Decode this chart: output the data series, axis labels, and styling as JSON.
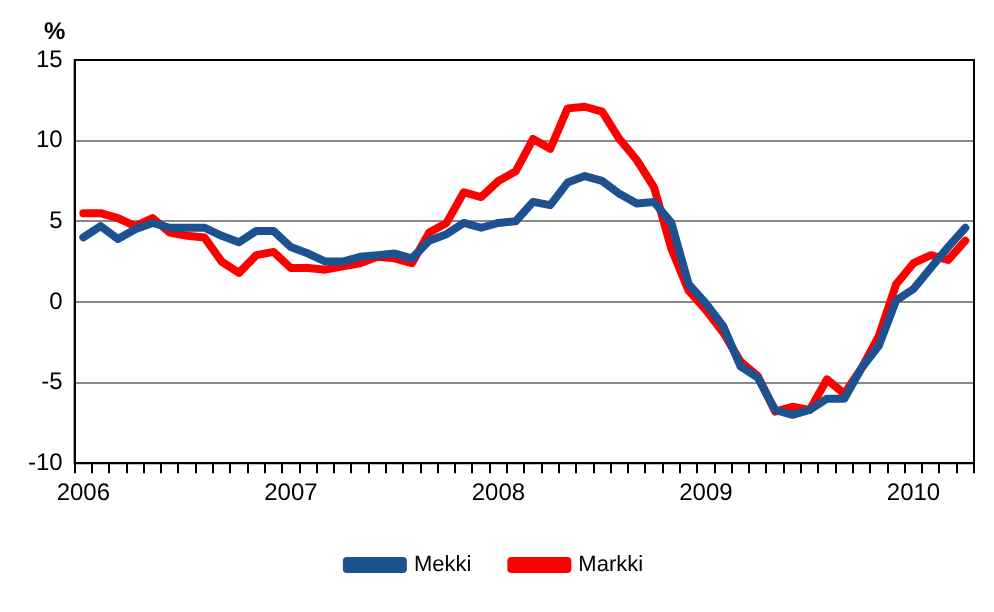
{
  "chart_data": {
    "type": "line",
    "ylabel": "%",
    "categories": [
      "2006",
      null,
      null,
      null,
      null,
      null,
      null,
      null,
      null,
      null,
      null,
      null,
      "2007",
      null,
      null,
      null,
      null,
      null,
      null,
      null,
      null,
      null,
      null,
      null,
      "2008",
      null,
      null,
      null,
      null,
      null,
      null,
      null,
      null,
      null,
      null,
      null,
      "2009",
      null,
      null,
      null,
      null,
      null,
      null,
      null,
      null,
      null,
      null,
      null,
      "2010",
      null,
      null,
      null
    ],
    "series": [
      {
        "name": "Mekki",
        "color": "#1d5290",
        "values": [
          4.0,
          4.7,
          3.9,
          4.5,
          4.9,
          4.6,
          4.6,
          4.6,
          4.1,
          3.7,
          4.4,
          4.4,
          3.4,
          3.0,
          2.5,
          2.5,
          2.8,
          2.9,
          3.0,
          2.7,
          3.8,
          4.2,
          4.9,
          4.6,
          4.9,
          5.0,
          6.2,
          6.0,
          7.4,
          7.8,
          7.5,
          6.7,
          6.1,
          6.2,
          4.9,
          1.1,
          -0.1,
          -1.5,
          -4.0,
          -4.7,
          -6.7,
          -7.0,
          -6.7,
          -6.0,
          -6.0,
          -4.1,
          -2.7,
          0.1,
          0.8,
          2.1,
          3.4,
          4.6
        ]
      },
      {
        "name": "Markki",
        "color": "#ff0000",
        "values": [
          5.5,
          5.5,
          5.2,
          4.7,
          5.2,
          4.3,
          4.1,
          4.0,
          2.5,
          1.8,
          2.9,
          3.1,
          2.1,
          2.1,
          2.0,
          2.2,
          2.4,
          2.8,
          2.7,
          2.4,
          4.3,
          4.9,
          6.8,
          6.5,
          7.5,
          8.1,
          10.1,
          9.5,
          12.0,
          12.1,
          11.8,
          10.1,
          8.8,
          7.1,
          3.3,
          0.7,
          -0.5,
          -1.9,
          -3.7,
          -4.6,
          -6.8,
          -6.5,
          -6.7,
          -4.8,
          -5.7,
          -4.1,
          -2.1,
          1.1,
          2.4,
          2.9,
          2.6,
          3.8
        ]
      }
    ],
    "ylim": [
      -10,
      15
    ],
    "yticks": [
      -10,
      -5,
      0,
      5,
      10,
      15
    ],
    "grid": "y",
    "legend": "bottom",
    "line_style": "solid",
    "marker": "none"
  }
}
